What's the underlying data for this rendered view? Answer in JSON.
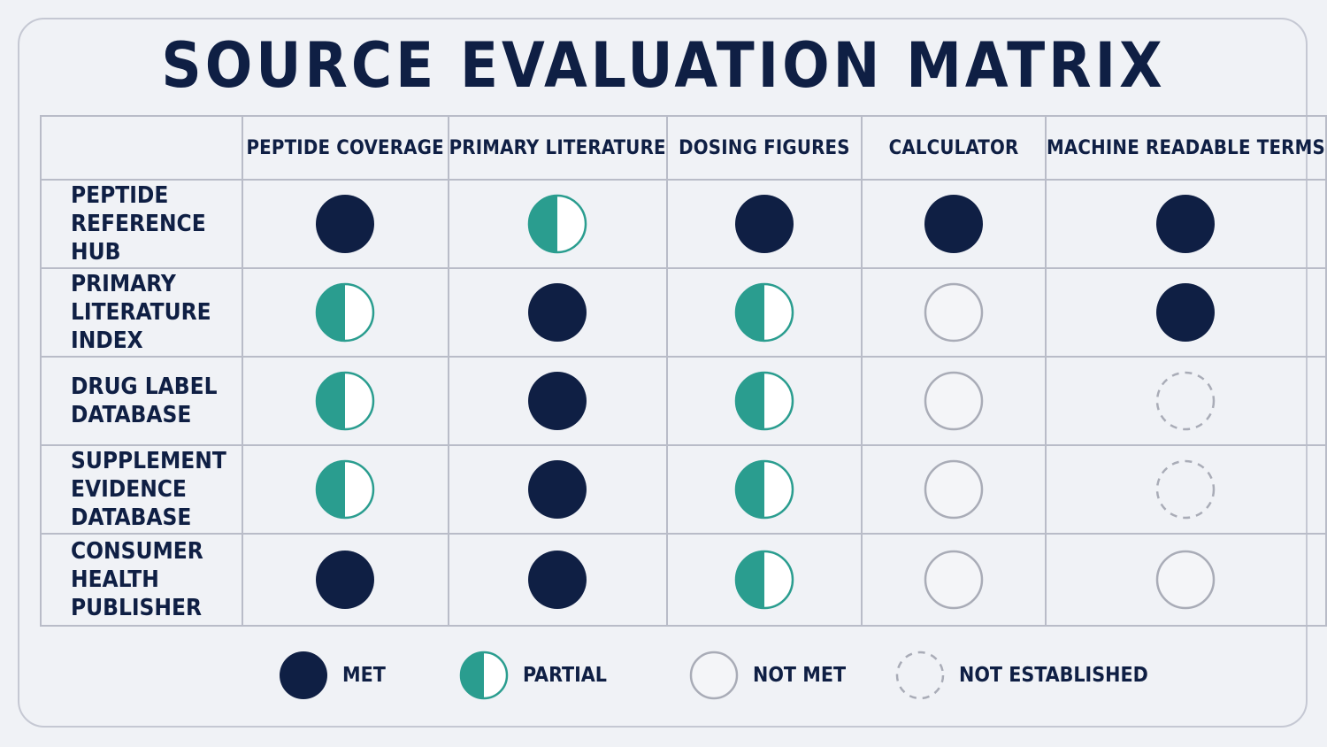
{
  "title": "SOURCE EVALUATION MATRIX",
  "colors": {
    "met": "#0f1f44",
    "partial": "#2a9d8f",
    "not_met_stroke": "#a9acb7",
    "not_established_stroke": "#a9acb7"
  },
  "legend": {
    "met": "MET",
    "partial": "PARTIAL",
    "not_met": "NOT MET",
    "not_established": "NOT ESTABLISHED"
  },
  "chart_data": {
    "type": "table",
    "title": "SOURCE EVALUATION MATRIX",
    "columns": [
      "PEPTIDE COVERAGE",
      "PRIMARY LITERATURE",
      "DOSING FIGURES",
      "CALCULATOR",
      "MACHINE READABLE TERMS"
    ],
    "rows": [
      {
        "label": [
          "PEPTIDE",
          "REFERENCE HUB"
        ],
        "values": [
          "met",
          "partial",
          "met",
          "met",
          "met"
        ]
      },
      {
        "label": [
          "PRIMARY",
          "LITERATURE INDEX"
        ],
        "values": [
          "partial",
          "met",
          "partial",
          "not_met",
          "met"
        ]
      },
      {
        "label": [
          "DRUG LABEL",
          "DATABASE"
        ],
        "values": [
          "partial",
          "met",
          "partial",
          "not_met",
          "not_established"
        ]
      },
      {
        "label": [
          "SUPPLEMENT",
          "EVIDENCE DATABASE"
        ],
        "values": [
          "partial",
          "met",
          "partial",
          "not_met",
          "not_established"
        ]
      },
      {
        "label": [
          "CONSUMER HEALTH",
          "PUBLISHER"
        ],
        "values": [
          "met",
          "met",
          "partial",
          "not_met",
          "not_met"
        ]
      }
    ],
    "legend": [
      "met",
      "partial",
      "not_met",
      "not_established"
    ]
  }
}
